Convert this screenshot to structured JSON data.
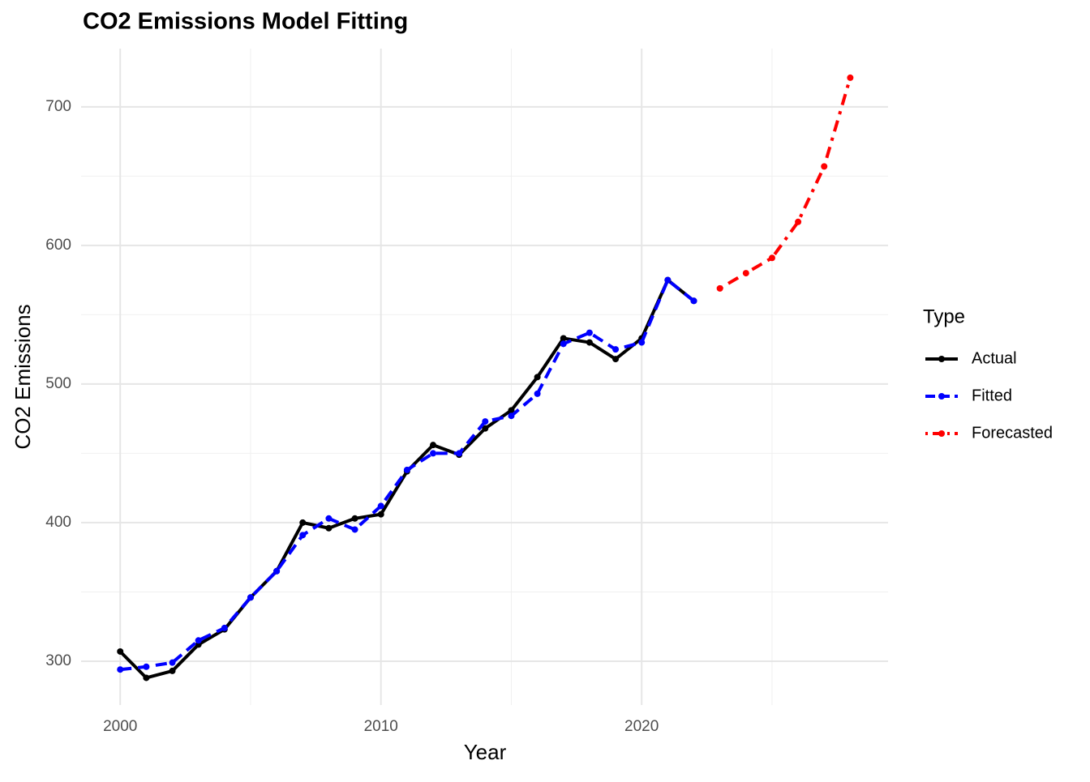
{
  "chart_data": {
    "type": "line",
    "title": "CO2 Emissions Model Fitting",
    "x_label": "Year",
    "y_label": "CO2 Emissions",
    "legend_title": "Type",
    "legend_position": "right",
    "xlim": [
      1998.5,
      2029.45
    ],
    "ylim": [
      268.4,
      742
    ],
    "xticks": [
      2000,
      2010,
      2020
    ],
    "yticks": [
      300,
      400,
      500,
      600,
      700
    ],
    "xminor": [
      2005,
      2015,
      2025
    ],
    "yminor": [
      350,
      450,
      550,
      650
    ],
    "grid": true,
    "series": [
      {
        "name": "Actual",
        "color": "#000000",
        "line_style": "solid",
        "x": [
          2000,
          2001,
          2002,
          2003,
          2004,
          2005,
          2006,
          2007,
          2008,
          2009,
          2010,
          2011,
          2012,
          2013,
          2014,
          2015,
          2016,
          2017,
          2018,
          2019,
          2020,
          2021,
          2022
        ],
        "values": [
          307,
          288,
          293,
          312,
          323,
          346,
          365,
          400,
          396,
          403,
          406,
          437,
          456,
          449,
          468,
          481,
          505,
          533,
          530,
          518,
          533,
          575,
          560
        ]
      },
      {
        "name": "Fitted",
        "color": "#0000ff",
        "line_style": "dashed",
        "x": [
          2000,
          2001,
          2002,
          2003,
          2004,
          2005,
          2006,
          2007,
          2008,
          2009,
          2010,
          2011,
          2012,
          2013,
          2014,
          2015,
          2016,
          2017,
          2018,
          2019,
          2020,
          2021,
          2022
        ],
        "values": [
          294,
          296,
          299,
          315,
          324,
          346,
          365,
          391,
          403,
          395,
          412,
          438,
          450,
          450,
          473,
          477,
          493,
          529,
          537,
          525,
          530,
          575,
          560
        ]
      },
      {
        "name": "Forecasted",
        "color": "#ff0000",
        "line_style": "dotdash",
        "x": [
          2023,
          2024,
          2025,
          2026,
          2027,
          2028
        ],
        "values": [
          569,
          580,
          591,
          617,
          657,
          721
        ]
      }
    ]
  }
}
